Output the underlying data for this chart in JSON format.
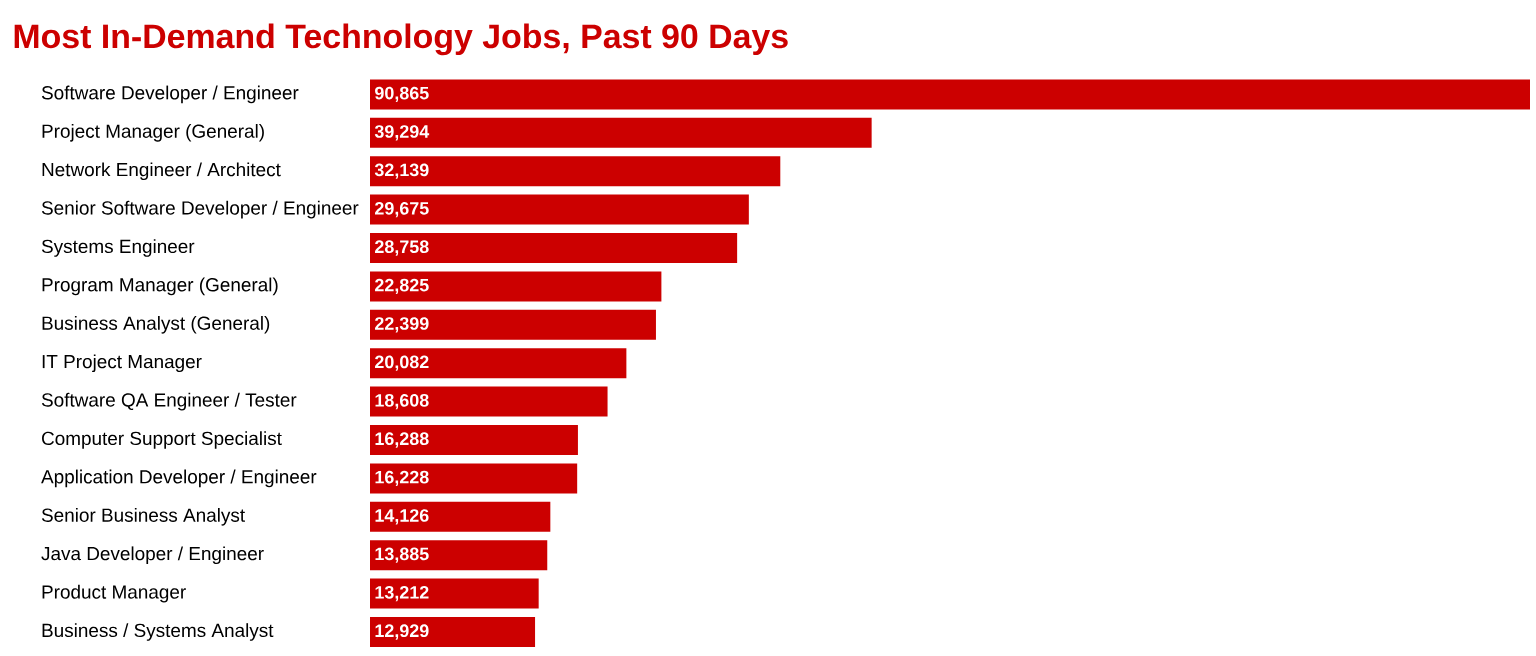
{
  "chart_data": {
    "type": "bar",
    "orientation": "horizontal",
    "title": "Most In-Demand Technology Jobs, Past 90 Days",
    "categories": [
      "Software Developer / Engineer",
      "Project Manager (General)",
      "Network Engineer / Architect",
      "Senior Software Developer / Engineer",
      "Systems Engineer",
      "Program Manager (General)",
      "Business Analyst (General)",
      "IT Project Manager",
      "Software QA Engineer / Tester",
      "Computer Support Specialist",
      "Application Developer / Engineer",
      "Senior Business Analyst",
      "Java Developer / Engineer",
      "Product Manager",
      "Business / Systems Analyst"
    ],
    "values": [
      90865,
      39294,
      32139,
      29675,
      28758,
      22825,
      22399,
      20082,
      18608,
      16288,
      16228,
      14126,
      13885,
      13212,
      12929
    ],
    "value_labels": [
      "90,865",
      "39,294",
      "32,139",
      "29,675",
      "28,758",
      "22,825",
      "22,399",
      "20,082",
      "18,608",
      "16,288",
      "16,228",
      "14,126",
      "13,885",
      "13,212",
      "12,929"
    ],
    "color": "#cc0000"
  }
}
